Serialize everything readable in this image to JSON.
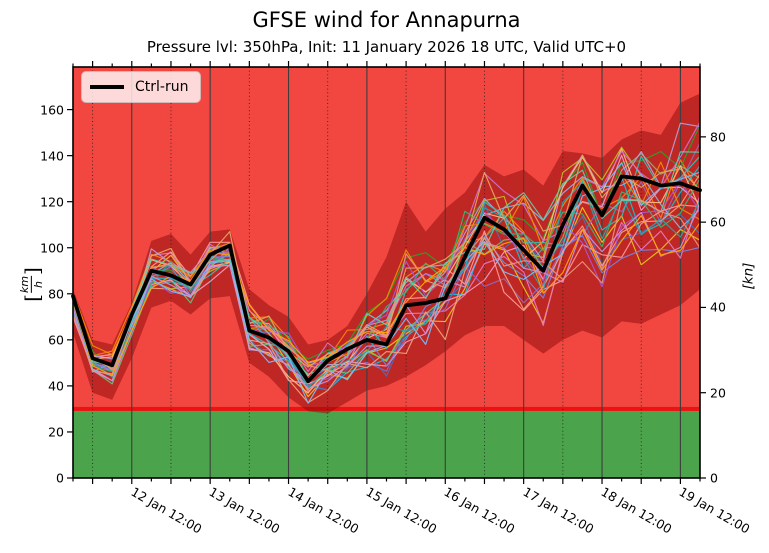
{
  "chart_data": {
    "type": "line",
    "title": "GFSE wind for Annapurna",
    "subtitle": "Pressure lvl: 350hPa, Init: 11 January 2026 18 UTC, Valid UTC+0",
    "legend": {
      "ctrl_label": "Ctrl-run"
    },
    "x_axis": {
      "start": "11 Jan 18:00",
      "end": "19 Jan 18:00",
      "step_hours": 6,
      "tick_labels": [
        "12 Jan 12:00",
        "13 Jan 12:00",
        "14 Jan 12:00",
        "15 Jan 12:00",
        "16 Jan 12:00",
        "17 Jan 12:00",
        "18 Jan 12:00",
        "19 Jan 12:00"
      ]
    },
    "y_axis_left": {
      "bracket_open": "[",
      "unit_num": "km",
      "unit_den": "h",
      "bracket_close": "]",
      "ticks": [
        0,
        20,
        40,
        60,
        80,
        100,
        120,
        140,
        160
      ],
      "lim": [
        0,
        178.5
      ]
    },
    "y_axis_right": {
      "label": "[kn]",
      "ticks": [
        0,
        20,
        40,
        60,
        80
      ],
      "kmh_per_kn": 1.852
    },
    "threshold_kmh": 30,
    "series": [
      {
        "name": "Ctrl-run",
        "values": [
          79,
          52,
          49,
          71,
          90,
          88,
          84,
          97,
          101,
          64,
          61,
          55,
          42,
          51,
          56,
          60,
          58,
          75,
          76,
          78,
          96,
          113,
          108,
          99,
          90,
          110,
          127,
          114,
          131,
          130,
          127,
          128,
          125
        ]
      }
    ],
    "ensemble": {
      "count": 28,
      "min": [
        63,
        37,
        34,
        52,
        74,
        77,
        71,
        78,
        79,
        50,
        44,
        35,
        29,
        28,
        33,
        38,
        40,
        44,
        49,
        55,
        62,
        66,
        66,
        60,
        54,
        60,
        64,
        61,
        68,
        67,
        71,
        75,
        82
      ],
      "max": [
        82,
        60,
        58,
        76,
        103,
        106,
        97,
        107,
        108,
        82,
        75,
        70,
        58,
        60,
        66,
        80,
        96,
        120,
        107,
        117,
        124,
        136,
        131,
        134,
        127,
        142,
        141,
        139,
        147,
        151,
        149,
        163,
        167
      ],
      "colors": [
        "#e8c31a",
        "#ff7f0e",
        "#17becf",
        "#e377c2",
        "#2ca02c",
        "#9467bd",
        "#4f6db8",
        "#bcbd22",
        "#ff9896",
        "#86b6e2",
        "#6fbf73",
        "#f29ac0",
        "#b69cd4",
        "#ffbb78",
        "#35c0b5",
        "#cf6fd0",
        "#f08c00",
        "#7485e0",
        "#3cb371",
        "#f0a07a",
        "#a955d3",
        "#28a2aa",
        "#e4a460",
        "#76befa",
        "#c990dd",
        "#5fcdaa",
        "#ffa500",
        "#e9967a"
      ]
    },
    "colors": {
      "background_above_threshold": "#f24740",
      "background_below_threshold": "#4ba34b",
      "threshold_line": "#ee1111",
      "envelope_fill": "rgba(139,8,8,0.5)",
      "ctrl_line": "#000000",
      "grid_major": "#3d3d3d",
      "grid_minor": "#1a1a1a"
    },
    "grid": {
      "major_at": "12:00 each day (solid)",
      "minor_at": "00:00 each day (dotted)"
    }
  }
}
